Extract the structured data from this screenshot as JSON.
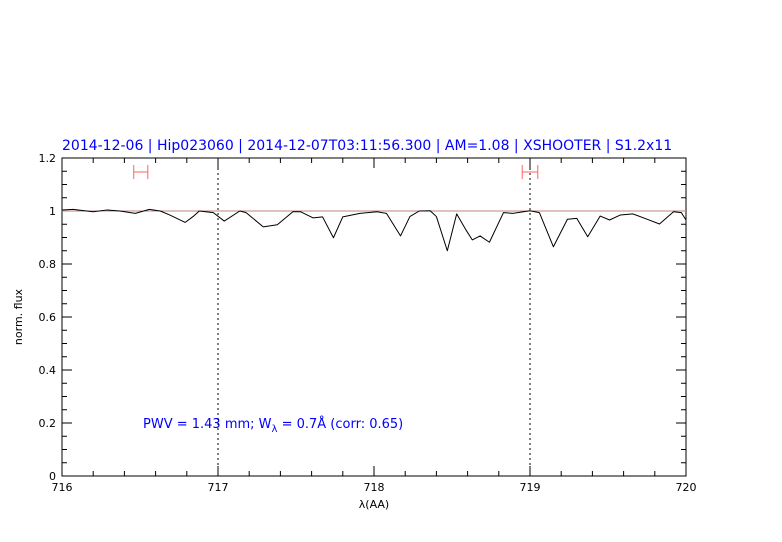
{
  "chart_data": {
    "type": "line",
    "title": "2014-12-06 | Hip023060 | 2014-12-07T03:11:56.300 | AM=1.08 | XSHOOTER | S1.2x11",
    "xlabel": "λ(AA)",
    "ylabel": "norm. flux",
    "xlim": [
      716,
      720
    ],
    "ylim": [
      0,
      1.2
    ],
    "xticks": [
      "716",
      "717",
      "718",
      "719",
      "720"
    ],
    "yticks": [
      "0",
      "0.2",
      "0.4",
      "0.6",
      "0.8",
      "1",
      "1.2"
    ],
    "grid": false,
    "reference_line": 1.0,
    "dotted_vlines": [
      717,
      719
    ],
    "fit_ranges": [
      [
        716.46,
        716.55
      ],
      [
        718.95,
        719.05
      ]
    ],
    "annotation": {
      "pre": "PWV = 1.43 mm; W",
      "sub": "λ",
      "post": " = 0.7Å (corr: 0.65)"
    },
    "colors": {
      "title": "#0000ff",
      "annotation": "#0000ff",
      "spectrum": "#000000",
      "reference": "#c08080",
      "fit_ranges": "#ff6060"
    },
    "series": [
      {
        "x": [
          716.0,
          716.07,
          716.2,
          716.29,
          716.37,
          716.47,
          716.56,
          716.63,
          716.69,
          716.79,
          716.84,
          716.88,
          716.97,
          717.04,
          717.14,
          717.18,
          717.29,
          717.38,
          717.48,
          717.53,
          717.61,
          717.67,
          717.74,
          717.8,
          717.91,
          718.02,
          718.08,
          718.17,
          718.23,
          718.29,
          718.36,
          718.4,
          718.47,
          718.53,
          718.59,
          718.63,
          718.68,
          718.74,
          718.83,
          718.89,
          719.0,
          719.06,
          719.15,
          719.24,
          719.3,
          719.37,
          719.45,
          719.51,
          719.58,
          719.66,
          719.75,
          719.83,
          719.92,
          719.97,
          720.0
        ],
        "y": [
          1.004,
          1.006,
          0.997,
          1.004,
          1.0,
          0.991,
          1.006,
          1.0,
          0.985,
          0.957,
          0.979,
          1.0,
          0.994,
          0.962,
          1.0,
          0.994,
          0.94,
          0.948,
          0.997,
          0.997,
          0.974,
          0.978,
          0.899,
          0.978,
          0.991,
          0.997,
          0.991,
          0.906,
          0.979,
          1.0,
          1.001,
          0.979,
          0.85,
          0.989,
          0.928,
          0.891,
          0.906,
          0.882,
          0.994,
          0.991,
          1.001,
          0.994,
          0.865,
          0.969,
          0.972,
          0.903,
          0.981,
          0.966,
          0.985,
          0.989,
          0.969,
          0.951,
          0.997,
          0.994,
          0.966
        ]
      }
    ]
  }
}
